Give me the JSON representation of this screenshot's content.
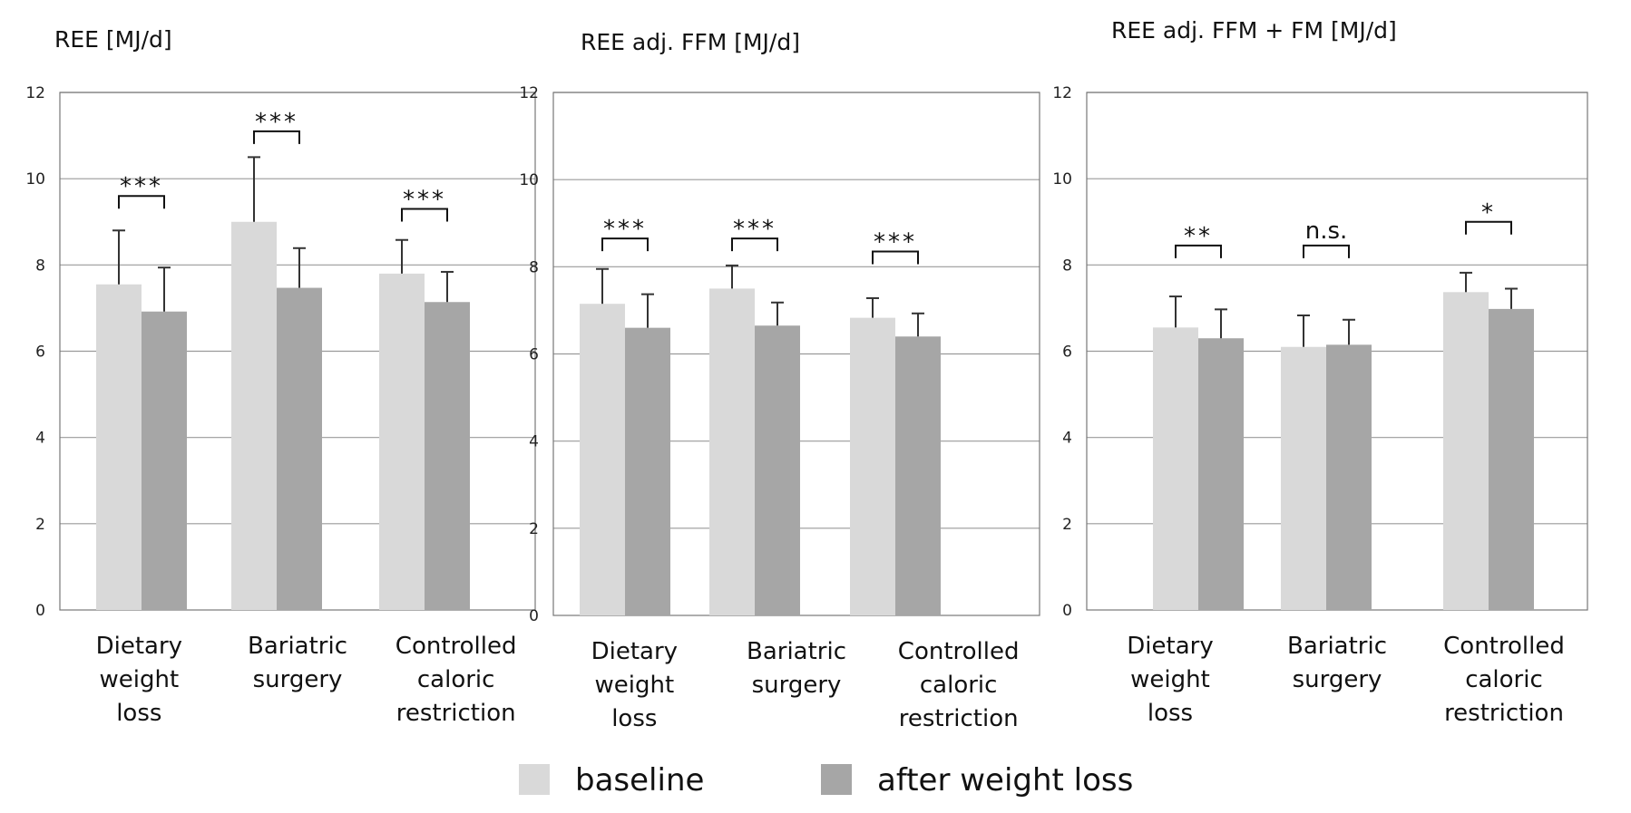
{
  "chart_data": [
    {
      "type": "bar",
      "title": "REE [MJ/d]",
      "ylim": [
        0,
        12
      ],
      "yticks": [
        0,
        2,
        4,
        6,
        8,
        10,
        12
      ],
      "grid": true,
      "categories": [
        [
          "Dietary",
          "weight",
          "loss"
        ],
        [
          "Bariatric",
          "surgery"
        ],
        [
          "Controlled",
          "caloric",
          "restriction"
        ]
      ],
      "series": [
        {
          "name": "baseline",
          "values": [
            7.55,
            9.0,
            7.8
          ],
          "errors": [
            1.25,
            1.5,
            0.78
          ]
        },
        {
          "name": "after weight loss",
          "values": [
            6.92,
            7.47,
            7.14
          ],
          "errors": [
            1.02,
            0.92,
            0.7
          ]
        }
      ],
      "significance": [
        {
          "label": "***",
          "y": 9.6
        },
        {
          "label": "***",
          "y": 11.1
        },
        {
          "label": "***",
          "y": 9.3
        }
      ]
    },
    {
      "type": "bar",
      "title": "REE adj. FFM [MJ/d]",
      "ylim": [
        0,
        12
      ],
      "yticks": [
        0,
        2,
        4,
        6,
        8,
        10,
        12
      ],
      "grid": true,
      "categories": [
        [
          "Dietary",
          "weight",
          "loss"
        ],
        [
          "Bariatric",
          "surgery"
        ],
        [
          "Controlled",
          "caloric",
          "restriction"
        ]
      ],
      "series": [
        {
          "name": "baseline",
          "values": [
            7.15,
            7.5,
            6.83
          ],
          "errors": [
            0.8,
            0.53,
            0.45
          ]
        },
        {
          "name": "after weight loss",
          "values": [
            6.6,
            6.65,
            6.4
          ],
          "errors": [
            0.77,
            0.53,
            0.53
          ]
        }
      ],
      "significance": [
        {
          "label": "***",
          "y": 8.65
        },
        {
          "label": "***",
          "y": 8.65
        },
        {
          "label": "***",
          "y": 8.35
        }
      ]
    },
    {
      "type": "bar",
      "title": "REE adj. FFM + FM [MJ/d]",
      "ylim": [
        0,
        12
      ],
      "yticks": [
        0,
        2,
        4,
        6,
        8,
        10,
        12
      ],
      "grid": true,
      "categories": [
        [
          "Dietary",
          "weight",
          "loss"
        ],
        [
          "Bariatric",
          "surgery"
        ],
        [
          "Controlled",
          "caloric",
          "restriction"
        ]
      ],
      "series": [
        {
          "name": "baseline",
          "values": [
            6.55,
            6.1,
            7.37
          ],
          "errors": [
            0.72,
            0.73,
            0.45
          ]
        },
        {
          "name": "after weight loss",
          "values": [
            6.3,
            6.15,
            6.98
          ],
          "errors": [
            0.67,
            0.58,
            0.47
          ]
        }
      ],
      "significance": [
        {
          "label": "**",
          "y": 8.45
        },
        {
          "label": "n.s.",
          "y": 8.45
        },
        {
          "label": "*",
          "y": 9.0
        }
      ]
    }
  ],
  "legend": {
    "position": "bottom-center",
    "items": [
      {
        "label": "baseline",
        "color": "#d9d9d9"
      },
      {
        "label": "after weight loss",
        "color": "#a6a6a6"
      }
    ]
  },
  "colors": {
    "baseline": "#d9d9d9",
    "after": "#a6a6a6",
    "grid": "#9a9a9a",
    "axis": "#777777",
    "error": "#333333",
    "bracket": "#111111"
  }
}
